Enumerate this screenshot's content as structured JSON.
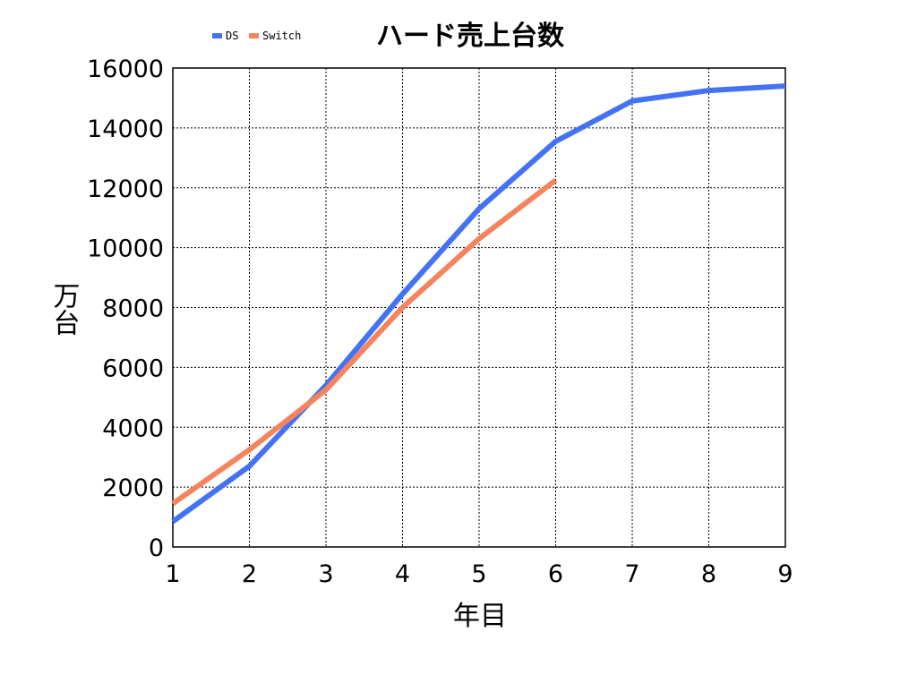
{
  "chart_data": {
    "type": "line",
    "title": "ハード売上台数",
    "xlabel": "年目",
    "ylabel": "万台",
    "x": [
      1,
      2,
      3,
      4,
      5,
      6,
      7,
      8,
      9
    ],
    "x_ticks": [
      "1",
      "2",
      "3",
      "4",
      "5",
      "6",
      "7",
      "8",
      "9"
    ],
    "y_ticks": [
      "0",
      "2000",
      "4000",
      "6000",
      "8000",
      "10000",
      "12000",
      "14000",
      "16000"
    ],
    "xlim": [
      1,
      9
    ],
    "ylim": [
      0,
      16000
    ],
    "grid": true,
    "legend_position": "top-left",
    "series": [
      {
        "name": "DS",
        "color": "#4372f5",
        "x": [
          1,
          2,
          3,
          4,
          5,
          6,
          7,
          8,
          9
        ],
        "values": [
          850,
          2700,
          5400,
          8450,
          11300,
          13550,
          14900,
          15250,
          15400
        ]
      },
      {
        "name": "Switch",
        "color": "#f5845e",
        "x": [
          1,
          2,
          3,
          4,
          5,
          6
        ],
        "values": [
          1450,
          3250,
          5250,
          8000,
          10300,
          12250
        ]
      }
    ]
  }
}
